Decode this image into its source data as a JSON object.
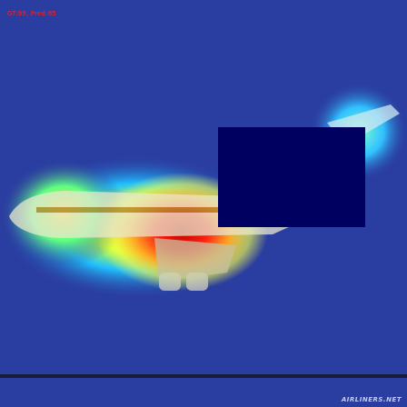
{
  "overlay": {
    "prediction_label": "GT:99, Pred:85",
    "label_color": "#ff2020"
  },
  "image": {
    "subject": "airplane",
    "heatmap_colormap": "jet",
    "watermark_text": "AIRLINERS.NET"
  },
  "colors": {
    "background": "#2a3da0",
    "occluder_patch": "#000060",
    "hotspot": "#d01010"
  }
}
